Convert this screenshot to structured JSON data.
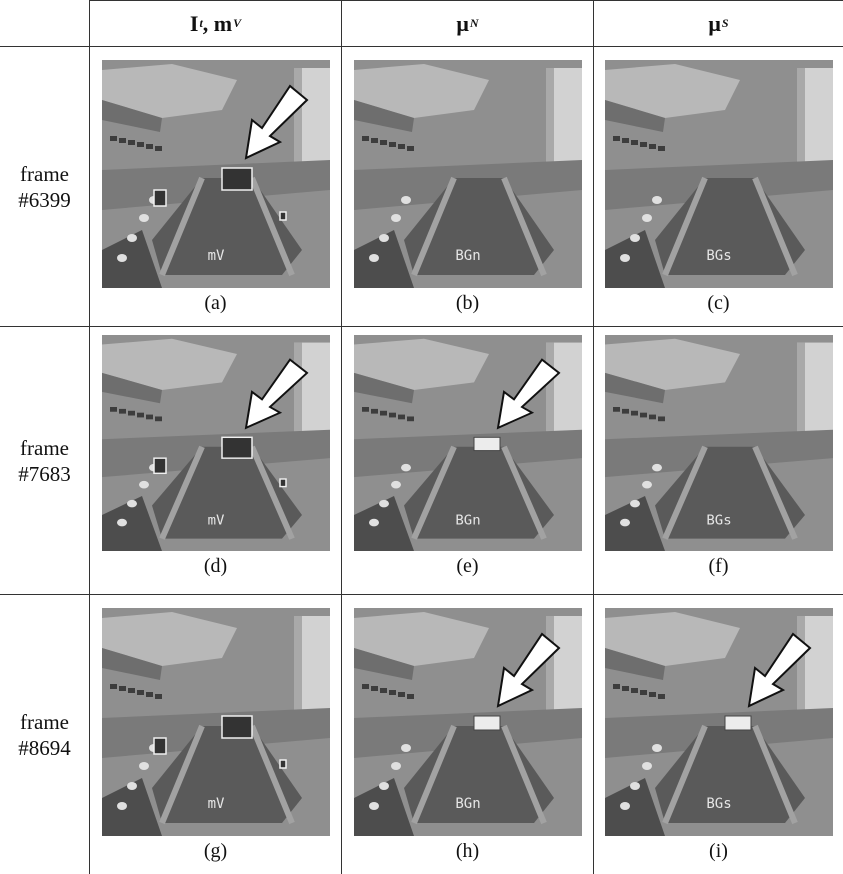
{
  "header": {
    "col1_main": "I",
    "col1_sub1": "t",
    "col1_sep": " , m",
    "col1_sub2": "V",
    "col2_main": "μ",
    "col2_sub": "N",
    "col3_main": "μ",
    "col3_sub": "S"
  },
  "rows": [
    {
      "label_line1": "frame",
      "label_line2": "#6399"
    },
    {
      "label_line1": "frame",
      "label_line2": "#7683"
    },
    {
      "label_line1": "frame",
      "label_line2": "#8694"
    }
  ],
  "cells": [
    {
      "caption": "(a)",
      "overlay": "mV",
      "arrow": true,
      "kind": "mv"
    },
    {
      "caption": "(b)",
      "overlay": "BGn",
      "arrow": false,
      "kind": "bg"
    },
    {
      "caption": "(c)",
      "overlay": "BGs",
      "arrow": false,
      "kind": "bg"
    },
    {
      "caption": "(d)",
      "overlay": "mV",
      "arrow": true,
      "kind": "mv"
    },
    {
      "caption": "(e)",
      "overlay": "BGn",
      "arrow": true,
      "kind": "bg",
      "van": true
    },
    {
      "caption": "(f)",
      "overlay": "BGs",
      "arrow": false,
      "kind": "bg"
    },
    {
      "caption": "(g)",
      "overlay": "mV",
      "arrow": false,
      "kind": "mv",
      "van": true
    },
    {
      "caption": "(h)",
      "overlay": "BGn",
      "arrow": true,
      "kind": "bg",
      "van": true
    },
    {
      "caption": "(i)",
      "overlay": "BGs",
      "arrow": true,
      "kind": "bg",
      "van": true
    }
  ],
  "colors": {
    "border": "#333333",
    "photo_dark": "#3a3a3a",
    "photo_mid": "#6b6b6b",
    "photo_light": "#c8c8c8"
  }
}
